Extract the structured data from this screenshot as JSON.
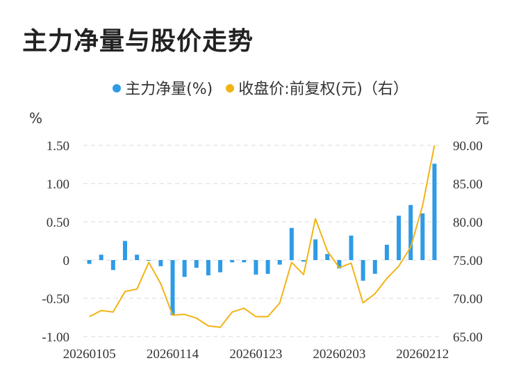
{
  "title": "主力净量与股价走势",
  "colors": {
    "bar": "#2f9be6",
    "line": "#f2b315",
    "grid": "#d9d9d9",
    "text": "#333333"
  },
  "chart_data": {
    "type": "bar+line",
    "title": "主力净量与股价走势",
    "left_unit": "%",
    "right_unit": "元",
    "legend_position": "top-center",
    "grid": "horizontal-dashed",
    "series": [
      {
        "name": "主力净量(%)",
        "type": "bar",
        "axis": "left",
        "legend_label": "主力净量(%)"
      },
      {
        "name": "收盘价:前复权(元)",
        "type": "line",
        "axis": "right",
        "legend_label": "收盘价:前复权(元)（右）"
      }
    ],
    "left_axis": {
      "ylim": [
        -1.0,
        1.5
      ],
      "ticks": [
        1.5,
        1.0,
        0.5,
        0,
        -0.5,
        -1.0
      ],
      "tick_labels": [
        "1.50",
        "1.00",
        "0.50",
        "0",
        "-0.50",
        "-1.00"
      ]
    },
    "right_axis": {
      "ylim": [
        65,
        90
      ],
      "ticks": [
        90,
        85,
        80,
        75,
        70,
        65
      ],
      "tick_labels": [
        "90.00",
        "85.00",
        "80.00",
        "75.00",
        "70.00",
        "65.00"
      ]
    },
    "x_tick_labels": [
      "20260105",
      "20260114",
      "20260123",
      "20260203",
      "20260212"
    ],
    "x_tick_indices": [
      0,
      7,
      14,
      21,
      28
    ],
    "dates": [
      "20260105",
      "20260106",
      "20260107",
      "20260108",
      "20260109",
      "20260112",
      "20260113",
      "20260114",
      "20260115",
      "20260116",
      "20260119",
      "20260120",
      "20260121",
      "20260122",
      "20260123",
      "20260126",
      "20260127",
      "20260128",
      "20260129",
      "20260130",
      "20260202",
      "20260203",
      "20260204",
      "20260205",
      "20260206",
      "20260209",
      "20260210",
      "20260211",
      "20260212",
      "20260213"
    ],
    "net_volume": [
      -0.05,
      0.07,
      -0.13,
      0.25,
      0.07,
      0.0,
      -0.08,
      -0.72,
      -0.22,
      -0.1,
      -0.2,
      -0.16,
      -0.03,
      -0.03,
      -0.19,
      -0.18,
      -0.06,
      0.42,
      -0.02,
      0.27,
      0.08,
      -0.11,
      0.32,
      -0.27,
      -0.18,
      0.2,
      0.58,
      0.72,
      0.61,
      1.26
    ],
    "close": [
      67.6,
      68.4,
      68.2,
      70.9,
      71.2,
      74.7,
      71.9,
      67.8,
      67.9,
      67.4,
      66.4,
      66.2,
      68.2,
      68.7,
      67.6,
      67.6,
      69.4,
      74.7,
      73.1,
      80.4,
      76.2,
      74.0,
      74.6,
      69.4,
      70.6,
      72.6,
      74.2,
      76.7,
      82.1,
      90.0
    ]
  }
}
